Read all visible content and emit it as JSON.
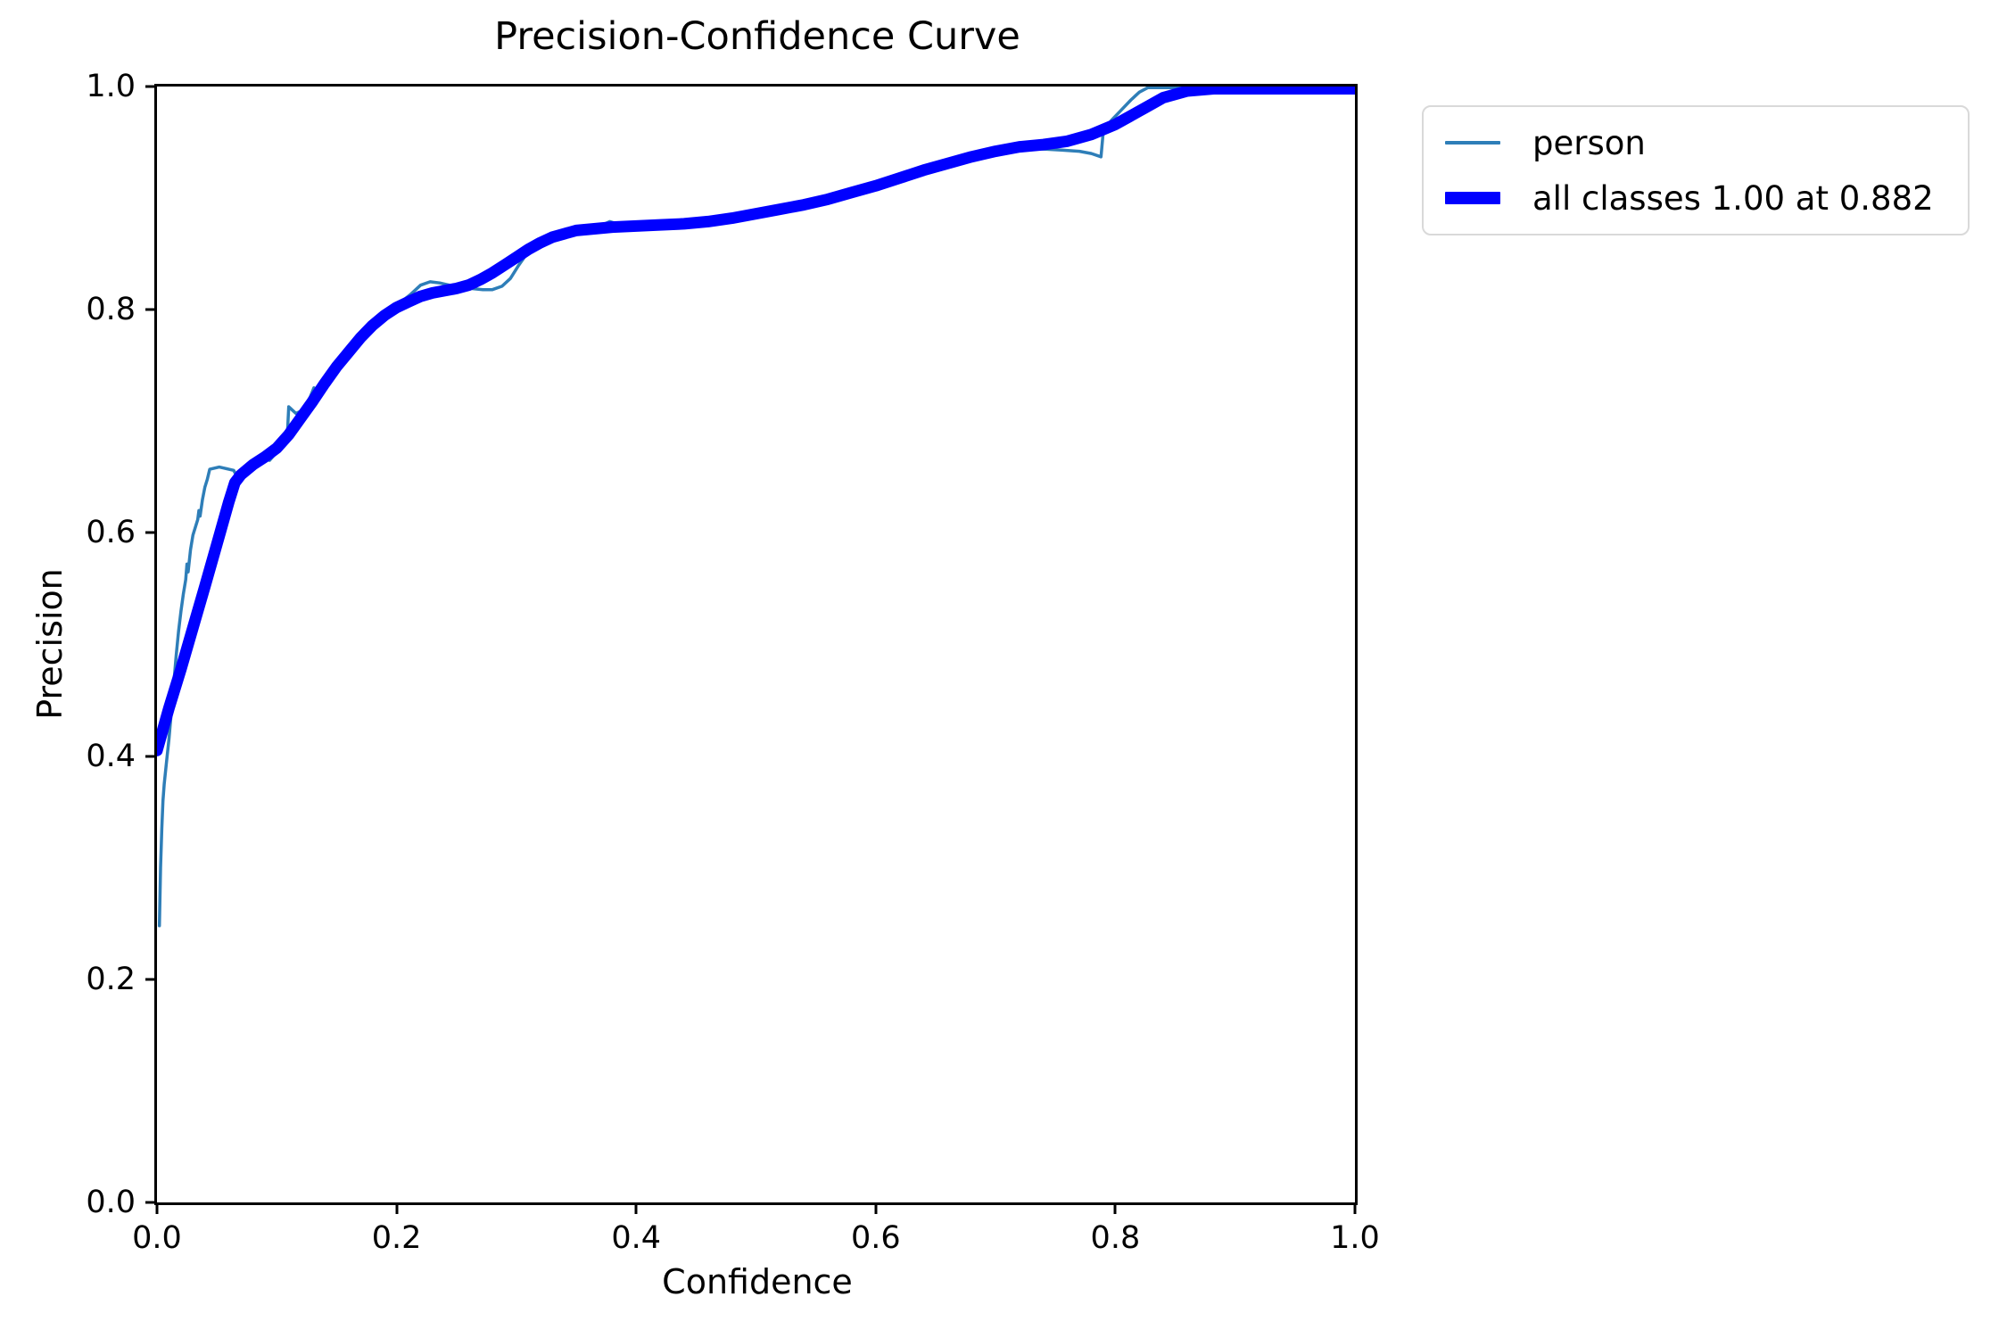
{
  "chart_data": {
    "type": "line",
    "title": "Precision-Confidence Curve",
    "xlabel": "Confidence",
    "ylabel": "Precision",
    "xlim": [
      0.0,
      1.0
    ],
    "ylim": [
      0.0,
      1.0
    ],
    "grid": false,
    "x_tick_labels": [
      "0.0",
      "0.2",
      "0.4",
      "0.6",
      "0.8",
      "1.0"
    ],
    "y_tick_labels": [
      "0.0",
      "0.2",
      "0.4",
      "0.6",
      "0.8",
      "1.0"
    ],
    "legend": {
      "position": "upper-right-outside",
      "entries": [
        {
          "label": "person",
          "color": "#2e7eb8",
          "weight": "thin"
        },
        {
          "label": "all classes 1.00 at 0.882",
          "color": "#0000ff",
          "weight": "thick"
        }
      ]
    },
    "series": [
      {
        "name": "person",
        "color": "#2e7eb8",
        "stroke_width": 3.5,
        "points": [
          [
            0.002,
            0.248
          ],
          [
            0.003,
            0.3
          ],
          [
            0.004,
            0.335
          ],
          [
            0.005,
            0.36
          ],
          [
            0.006,
            0.375
          ],
          [
            0.008,
            0.395
          ],
          [
            0.01,
            0.415
          ],
          [
            0.012,
            0.44
          ],
          [
            0.014,
            0.465
          ],
          [
            0.016,
            0.49
          ],
          [
            0.018,
            0.512
          ],
          [
            0.02,
            0.53
          ],
          [
            0.022,
            0.545
          ],
          [
            0.024,
            0.558
          ],
          [
            0.025,
            0.572
          ],
          [
            0.026,
            0.565
          ],
          [
            0.028,
            0.585
          ],
          [
            0.03,
            0.598
          ],
          [
            0.032,
            0.605
          ],
          [
            0.034,
            0.612
          ],
          [
            0.035,
            0.62
          ],
          [
            0.036,
            0.615
          ],
          [
            0.038,
            0.63
          ],
          [
            0.04,
            0.641
          ],
          [
            0.042,
            0.648
          ],
          [
            0.044,
            0.657
          ],
          [
            0.048,
            0.658
          ],
          [
            0.052,
            0.659
          ],
          [
            0.056,
            0.658
          ],
          [
            0.06,
            0.657
          ],
          [
            0.064,
            0.656
          ],
          [
            0.067,
            0.65
          ],
          [
            0.07,
            0.649
          ],
          [
            0.074,
            0.654
          ],
          [
            0.078,
            0.66
          ],
          [
            0.082,
            0.664
          ],
          [
            0.086,
            0.667
          ],
          [
            0.09,
            0.666
          ],
          [
            0.094,
            0.665
          ],
          [
            0.098,
            0.67
          ],
          [
            0.102,
            0.678
          ],
          [
            0.106,
            0.687
          ],
          [
            0.109,
            0.692
          ],
          [
            0.11,
            0.713
          ],
          [
            0.113,
            0.71
          ],
          [
            0.116,
            0.707
          ],
          [
            0.12,
            0.709
          ],
          [
            0.124,
            0.714
          ],
          [
            0.128,
            0.722
          ],
          [
            0.131,
            0.73
          ],
          [
            0.134,
            0.727
          ],
          [
            0.138,
            0.733
          ],
          [
            0.142,
            0.74
          ],
          [
            0.146,
            0.747
          ],
          [
            0.15,
            0.753
          ],
          [
            0.154,
            0.759
          ],
          [
            0.158,
            0.762
          ],
          [
            0.162,
            0.766
          ],
          [
            0.166,
            0.772
          ],
          [
            0.17,
            0.778
          ],
          [
            0.175,
            0.784
          ],
          [
            0.18,
            0.789
          ],
          [
            0.186,
            0.794
          ],
          [
            0.192,
            0.799
          ],
          [
            0.198,
            0.803
          ],
          [
            0.205,
            0.808
          ],
          [
            0.212,
            0.814
          ],
          [
            0.22,
            0.822
          ],
          [
            0.228,
            0.825
          ],
          [
            0.236,
            0.824
          ],
          [
            0.244,
            0.822
          ],
          [
            0.252,
            0.821
          ],
          [
            0.262,
            0.819
          ],
          [
            0.272,
            0.818
          ],
          [
            0.28,
            0.818
          ],
          [
            0.288,
            0.821
          ],
          [
            0.295,
            0.828
          ],
          [
            0.302,
            0.84
          ],
          [
            0.308,
            0.849
          ],
          [
            0.314,
            0.856
          ],
          [
            0.32,
            0.858
          ],
          [
            0.326,
            0.86
          ],
          [
            0.332,
            0.863
          ],
          [
            0.34,
            0.867
          ],
          [
            0.348,
            0.87
          ],
          [
            0.356,
            0.872
          ],
          [
            0.364,
            0.874
          ],
          [
            0.372,
            0.876
          ],
          [
            0.378,
            0.879
          ],
          [
            0.384,
            0.877
          ],
          [
            0.392,
            0.875
          ],
          [
            0.4,
            0.875
          ],
          [
            0.42,
            0.876
          ],
          [
            0.44,
            0.877
          ],
          [
            0.46,
            0.879
          ],
          [
            0.48,
            0.882
          ],
          [
            0.5,
            0.886
          ],
          [
            0.52,
            0.89
          ],
          [
            0.54,
            0.894
          ],
          [
            0.56,
            0.899
          ],
          [
            0.58,
            0.905
          ],
          [
            0.6,
            0.911
          ],
          [
            0.62,
            0.918
          ],
          [
            0.64,
            0.925
          ],
          [
            0.66,
            0.931
          ],
          [
            0.68,
            0.937
          ],
          [
            0.695,
            0.941
          ],
          [
            0.71,
            0.944
          ],
          [
            0.725,
            0.945
          ],
          [
            0.74,
            0.944
          ],
          [
            0.755,
            0.943
          ],
          [
            0.77,
            0.942
          ],
          [
            0.78,
            0.94
          ],
          [
            0.788,
            0.937
          ],
          [
            0.79,
            0.961
          ],
          [
            0.797,
            0.97
          ],
          [
            0.805,
            0.979
          ],
          [
            0.813,
            0.988
          ],
          [
            0.82,
            0.995
          ],
          [
            0.827,
            0.999
          ],
          [
            0.9,
            0.999
          ],
          [
            1.0,
            0.999
          ]
        ]
      },
      {
        "name": "all classes",
        "color": "#0000ff",
        "stroke_width": 13,
        "points": [
          [
            0.0,
            0.405
          ],
          [
            0.01,
            0.443
          ],
          [
            0.02,
            0.478
          ],
          [
            0.03,
            0.515
          ],
          [
            0.04,
            0.552
          ],
          [
            0.05,
            0.59
          ],
          [
            0.06,
            0.628
          ],
          [
            0.065,
            0.645
          ],
          [
            0.07,
            0.652
          ],
          [
            0.08,
            0.661
          ],
          [
            0.09,
            0.668
          ],
          [
            0.1,
            0.676
          ],
          [
            0.11,
            0.688
          ],
          [
            0.12,
            0.703
          ],
          [
            0.13,
            0.718
          ],
          [
            0.14,
            0.734
          ],
          [
            0.15,
            0.749
          ],
          [
            0.16,
            0.762
          ],
          [
            0.17,
            0.775
          ],
          [
            0.18,
            0.786
          ],
          [
            0.19,
            0.795
          ],
          [
            0.2,
            0.802
          ],
          [
            0.21,
            0.807
          ],
          [
            0.22,
            0.812
          ],
          [
            0.23,
            0.815
          ],
          [
            0.24,
            0.817
          ],
          [
            0.25,
            0.819
          ],
          [
            0.26,
            0.822
          ],
          [
            0.27,
            0.827
          ],
          [
            0.28,
            0.833
          ],
          [
            0.29,
            0.84
          ],
          [
            0.3,
            0.847
          ],
          [
            0.31,
            0.854
          ],
          [
            0.32,
            0.86
          ],
          [
            0.33,
            0.865
          ],
          [
            0.34,
            0.868
          ],
          [
            0.35,
            0.871
          ],
          [
            0.36,
            0.872
          ],
          [
            0.37,
            0.873
          ],
          [
            0.38,
            0.874
          ],
          [
            0.4,
            0.875
          ],
          [
            0.42,
            0.876
          ],
          [
            0.44,
            0.877
          ],
          [
            0.46,
            0.879
          ],
          [
            0.48,
            0.882
          ],
          [
            0.5,
            0.886
          ],
          [
            0.52,
            0.89
          ],
          [
            0.54,
            0.894
          ],
          [
            0.56,
            0.899
          ],
          [
            0.58,
            0.905
          ],
          [
            0.6,
            0.911
          ],
          [
            0.62,
            0.918
          ],
          [
            0.64,
            0.925
          ],
          [
            0.66,
            0.931
          ],
          [
            0.68,
            0.937
          ],
          [
            0.7,
            0.942
          ],
          [
            0.72,
            0.946
          ],
          [
            0.74,
            0.948
          ],
          [
            0.76,
            0.951
          ],
          [
            0.78,
            0.957
          ],
          [
            0.8,
            0.966
          ],
          [
            0.82,
            0.978
          ],
          [
            0.84,
            0.99
          ],
          [
            0.86,
            0.996
          ],
          [
            0.882,
            0.998
          ],
          [
            1.0,
            0.998
          ]
        ]
      }
    ]
  }
}
